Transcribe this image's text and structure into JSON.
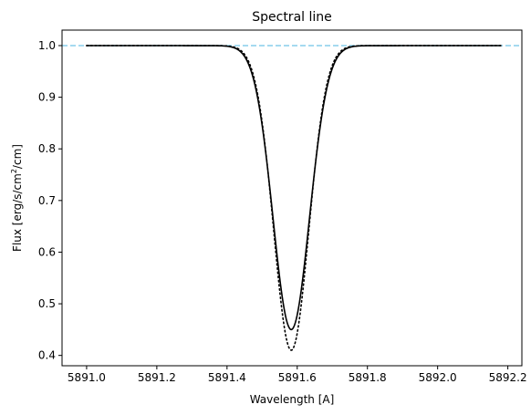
{
  "chart_data": {
    "type": "line",
    "title": "Spectral line",
    "xlabel": "Wavelength [A]",
    "ylabel_parts": [
      "Flux [erg/s/cm",
      "2",
      "/cm]"
    ],
    "xlim": [
      5890.93,
      5892.24
    ],
    "ylim": [
      0.38,
      1.03
    ],
    "xticks": [
      {
        "value": 5891.0,
        "label": "5891.0"
      },
      {
        "value": 5891.2,
        "label": "5891.2"
      },
      {
        "value": 5891.4,
        "label": "5891.4"
      },
      {
        "value": 5891.6,
        "label": "5891.6"
      },
      {
        "value": 5891.8,
        "label": "5891.8"
      },
      {
        "value": 5892.0,
        "label": "5892.0"
      },
      {
        "value": 5892.2,
        "label": "5892.2"
      }
    ],
    "yticks": [
      {
        "value": 0.4,
        "label": "0.4"
      },
      {
        "value": 0.5,
        "label": "0.5"
      },
      {
        "value": 0.6,
        "label": "0.6"
      },
      {
        "value": 0.7,
        "label": "0.7"
      },
      {
        "value": 0.8,
        "label": "0.8"
      },
      {
        "value": 0.9,
        "label": "0.9"
      },
      {
        "value": 1.0,
        "label": "1.0"
      }
    ],
    "grid": false,
    "reference_line": {
      "y": 1.0,
      "color": "#87ceeb",
      "style": "dashed"
    },
    "series": [
      {
        "style": "solid",
        "color": "#000000",
        "line": {
          "center": 5891.583,
          "depth": 0.55,
          "sigma": 0.052,
          "gamma": 0.004,
          "x_start": 5891.0,
          "x_end": 5892.18
        }
      },
      {
        "style": "dotted",
        "color": "#000000",
        "line": {
          "center": 5891.583,
          "depth": 0.59,
          "sigma": 0.05,
          "gamma": 0.0,
          "x_start": 5891.0,
          "x_end": 5892.18
        }
      }
    ]
  }
}
